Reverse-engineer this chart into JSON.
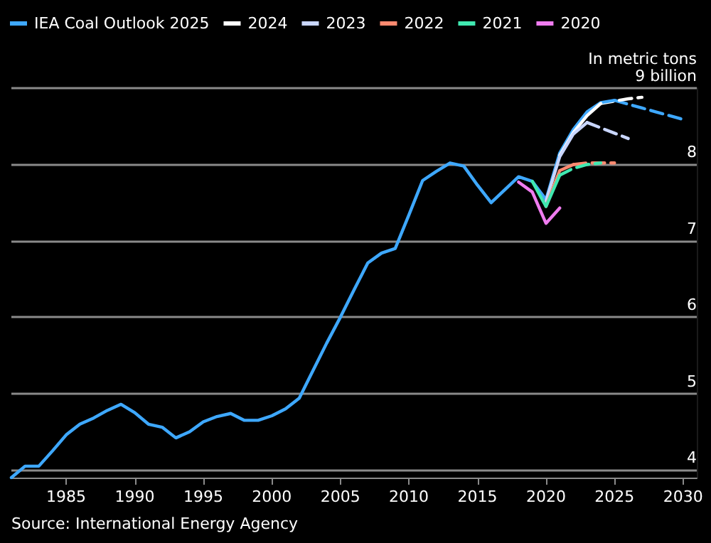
{
  "chart_data": {
    "type": "line",
    "ylabel": "In metric tons",
    "annotations": [
      "Source: International Energy Agency"
    ],
    "xlim": [
      1981,
      2031
    ],
    "xticks": [
      1985,
      1990,
      1995,
      2000,
      2005,
      2010,
      2015,
      2020,
      2025,
      2030
    ],
    "ylim": [
      3.9,
      9
    ],
    "yticks": [
      4,
      5,
      6,
      7,
      8,
      {
        "value": 9,
        "label": "9 billion"
      }
    ],
    "grid": "y",
    "legend": "top left",
    "marker": "none",
    "series": [
      {
        "name": "IEA Coal Outlook 2025",
        "color": "#3ea8ff",
        "line_style": "solid",
        "x": [
          1981,
          1982,
          1983,
          1984,
          1985,
          1986,
          1987,
          1988,
          1989,
          1990,
          1991,
          1992,
          1993,
          1994,
          1995,
          1996,
          1997,
          1998,
          1999,
          2000,
          2001,
          2002,
          2003,
          2004,
          2005,
          2006,
          2007,
          2008,
          2009,
          2010,
          2011,
          2012,
          2013,
          2014,
          2015,
          2016,
          2017,
          2018,
          2019,
          2020,
          2021,
          2022,
          2023,
          2024,
          2025
        ],
        "values": [
          3.9,
          4.05,
          4.05,
          4.25,
          4.46,
          4.6,
          4.68,
          4.78,
          4.86,
          4.75,
          4.6,
          4.56,
          4.42,
          4.5,
          4.63,
          4.7,
          4.74,
          4.65,
          4.65,
          4.71,
          4.8,
          4.94,
          5.3,
          5.66,
          6.0,
          6.36,
          6.71,
          6.84,
          6.9,
          7.34,
          7.79,
          7.91,
          8.02,
          7.98,
          7.73,
          7.5,
          7.67,
          7.84,
          7.78,
          7.54,
          8.15,
          8.46,
          8.69,
          8.81,
          8.84
        ]
      },
      {
        "name": "2024",
        "color": "#ffffff",
        "line_style": "solid",
        "x": [
          2021,
          2022,
          2023,
          2024
        ],
        "values": [
          8.12,
          8.42,
          8.64,
          8.8
        ]
      },
      {
        "name": "2023",
        "color": "#c9d6ff",
        "line_style": "solid",
        "x": [
          2020,
          2021,
          2022,
          2023
        ],
        "values": [
          7.52,
          8.1,
          8.4,
          8.55
        ]
      },
      {
        "name": "2022",
        "color": "#ff8a70",
        "line_style": "solid",
        "x": [
          2020,
          2021,
          2022
        ],
        "values": [
          7.45,
          7.92,
          8.0
        ]
      },
      {
        "name": "2021",
        "color": "#40e8b0",
        "line_style": "solid",
        "x": [
          2019,
          2020,
          2021
        ],
        "values": [
          7.78,
          7.45,
          7.86
        ]
      },
      {
        "name": "2020",
        "color": "#f07cf0",
        "line_style": "solid",
        "x": [
          2018,
          2019,
          2020,
          2021
        ],
        "values": [
          7.77,
          7.64,
          7.23,
          7.43
        ]
      },
      {
        "color": "#3ea8ff",
        "line_style": "dashed",
        "x": [
          2025,
          2026,
          2027,
          2028,
          2029,
          2030
        ],
        "values": [
          8.84,
          8.79,
          8.74,
          8.69,
          8.64,
          8.59
        ]
      },
      {
        "color": "#ffffff",
        "line_style": "dashed",
        "x": [
          2024,
          2025,
          2026,
          2027
        ],
        "values": [
          8.8,
          8.83,
          8.86,
          8.88
        ]
      },
      {
        "color": "#c9d6ff",
        "line_style": "dashed",
        "x": [
          2023,
          2024,
          2025,
          2026
        ],
        "values": [
          8.55,
          8.48,
          8.41,
          8.34
        ]
      },
      {
        "color": "#ff8a70",
        "line_style": "dashed",
        "x": [
          2022,
          2023,
          2024,
          2025
        ],
        "values": [
          8.0,
          8.02,
          8.02,
          8.02
        ]
      },
      {
        "color": "#40e8b0",
        "line_style": "dashed",
        "x": [
          2021,
          2022,
          2023,
          2024
        ],
        "values": [
          7.86,
          7.95,
          8.0,
          8.02
        ]
      }
    ]
  }
}
